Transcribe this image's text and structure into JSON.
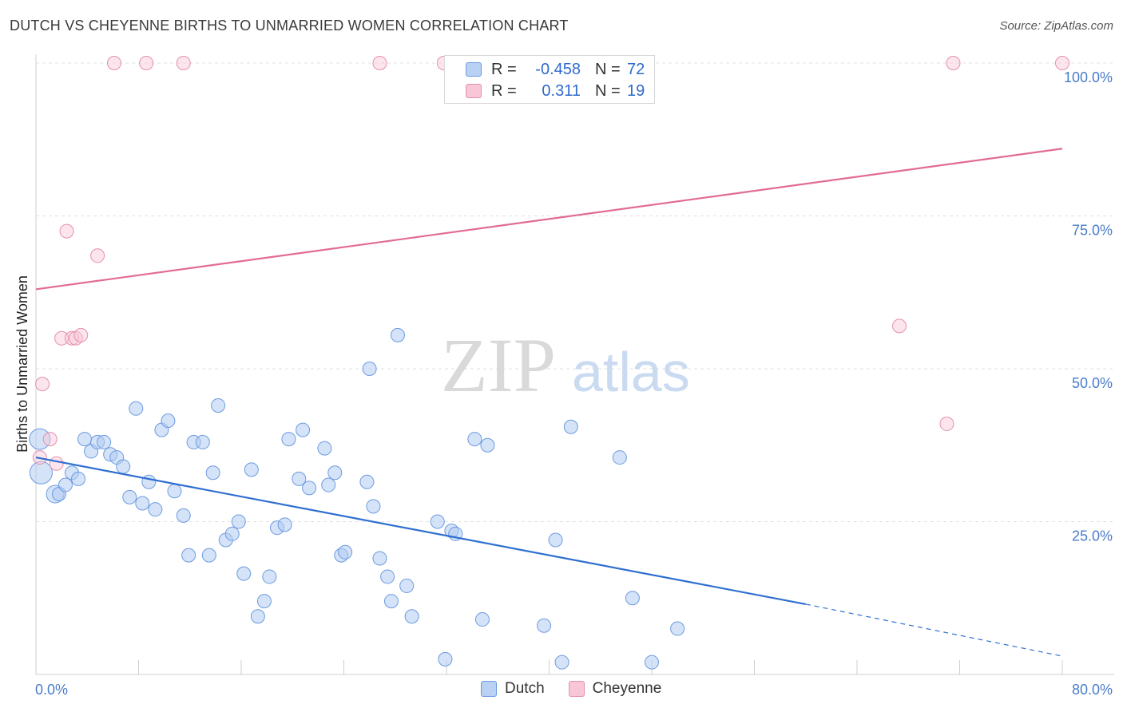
{
  "header": {
    "title": "DUTCH VS CHEYENNE BIRTHS TO UNMARRIED WOMEN CORRELATION CHART",
    "source": "Source: ZipAtlas.com"
  },
  "watermark": {
    "zip": "ZIP",
    "atlas": "atlas"
  },
  "legend": {
    "series": [
      {
        "name": "Dutch",
        "r_label": "R =",
        "r_value": "-0.458",
        "n_label": "N =",
        "n_value": "72",
        "color": "#6d9be0",
        "fill": "#b9d1f3"
      },
      {
        "name": "Cheyenne",
        "r_label": "R =",
        "r_value": "0.311",
        "n_label": "N =",
        "n_value": "19",
        "color": "#e590ac",
        "fill": "#f8c6d6"
      }
    ]
  },
  "bottom_legend": {
    "dutch": "Dutch",
    "cheyenne": "Cheyenne"
  },
  "chart_data": {
    "type": "scatter",
    "title": "DUTCH VS CHEYENNE BIRTHS TO UNMARRIED WOMEN CORRELATION CHART",
    "xlabel": "",
    "ylabel": "Births to Unmarried Women",
    "xlim": [
      0,
      80
    ],
    "ylim": [
      0,
      100
    ],
    "x_tick_labels": [
      "0.0%",
      "80.0%"
    ],
    "y_ticks": [
      25,
      50,
      75,
      100
    ],
    "y_tick_labels": [
      "25.0%",
      "50.0%",
      "75.0%",
      "100.0%"
    ],
    "grid": true,
    "legend_position": "top-center",
    "series": [
      {
        "name": "Dutch",
        "color": "#4f86d8",
        "trend": {
          "x0": 0,
          "y0": 35.5,
          "x1": 60,
          "y1": 11.5,
          "dashed_to_x": 80,
          "dashed_to_y": 3.0,
          "line_color": "#2f6fd0"
        },
        "points": [
          [
            0.3,
            38.5
          ],
          [
            0.4,
            33
          ],
          [
            1.5,
            29.5
          ],
          [
            1.8,
            29.5
          ],
          [
            2.3,
            31
          ],
          [
            2.8,
            33
          ],
          [
            3.3,
            32
          ],
          [
            3.8,
            38.5
          ],
          [
            4.3,
            36.5
          ],
          [
            4.8,
            38
          ],
          [
            5.3,
            38
          ],
          [
            5.8,
            36
          ],
          [
            6.3,
            35.5
          ],
          [
            6.8,
            34
          ],
          [
            7.3,
            29
          ],
          [
            7.8,
            43.5
          ],
          [
            8.3,
            28
          ],
          [
            8.8,
            31.5
          ],
          [
            9.3,
            27
          ],
          [
            9.8,
            40
          ],
          [
            10.3,
            41.5
          ],
          [
            10.8,
            30
          ],
          [
            11.5,
            26
          ],
          [
            11.9,
            19.5
          ],
          [
            12.3,
            38
          ],
          [
            13.0,
            38
          ],
          [
            13.5,
            19.5
          ],
          [
            13.8,
            33
          ],
          [
            14.2,
            44
          ],
          [
            14.8,
            22
          ],
          [
            15.3,
            23
          ],
          [
            15.8,
            25
          ],
          [
            16.2,
            16.5
          ],
          [
            16.8,
            33.5
          ],
          [
            17.3,
            9.5
          ],
          [
            17.8,
            12
          ],
          [
            18.2,
            16
          ],
          [
            18.8,
            24
          ],
          [
            19.4,
            24.5
          ],
          [
            19.7,
            38.5
          ],
          [
            20.5,
            32
          ],
          [
            20.8,
            40
          ],
          [
            21.3,
            30.5
          ],
          [
            22.5,
            37
          ],
          [
            22.8,
            31
          ],
          [
            23.3,
            33
          ],
          [
            23.8,
            19.5
          ],
          [
            24.1,
            20
          ],
          [
            25.8,
            31.5
          ],
          [
            26.0,
            50
          ],
          [
            26.3,
            27.5
          ],
          [
            26.8,
            19
          ],
          [
            27.4,
            16
          ],
          [
            27.7,
            12
          ],
          [
            28.2,
            55.5
          ],
          [
            28.9,
            14.5
          ],
          [
            29.3,
            9.5
          ],
          [
            31.3,
            25
          ],
          [
            31.9,
            2.5
          ],
          [
            32.4,
            23.5
          ],
          [
            32.7,
            23
          ],
          [
            34.2,
            38.5
          ],
          [
            34.8,
            9
          ],
          [
            35.2,
            37.5
          ],
          [
            39.6,
            8
          ],
          [
            40.5,
            22
          ],
          [
            41.0,
            2
          ],
          [
            41.7,
            40.5
          ],
          [
            45.5,
            35.5
          ],
          [
            46.5,
            12.5
          ],
          [
            48.0,
            2
          ],
          [
            50.0,
            7.5
          ]
        ]
      },
      {
        "name": "Cheyenne",
        "color": "#e88aaa",
        "trend": {
          "x0": 0,
          "y0": 63,
          "x1": 80,
          "y1": 86,
          "line_color": "#e26b95"
        },
        "points": [
          [
            0.3,
            35.5
          ],
          [
            0.5,
            47.5
          ],
          [
            1.1,
            38.5
          ],
          [
            1.6,
            34.5
          ],
          [
            2.0,
            55
          ],
          [
            2.4,
            72.5
          ],
          [
            2.8,
            55
          ],
          [
            3.1,
            55
          ],
          [
            3.5,
            55.5
          ],
          [
            4.8,
            68.5
          ],
          [
            6.1,
            100
          ],
          [
            8.6,
            100
          ],
          [
            11.5,
            100
          ],
          [
            26.8,
            100
          ],
          [
            31.8,
            100
          ],
          [
            67.3,
            57
          ],
          [
            71.0,
            41
          ],
          [
            71.5,
            100
          ],
          [
            80.0,
            100
          ]
        ]
      }
    ]
  }
}
